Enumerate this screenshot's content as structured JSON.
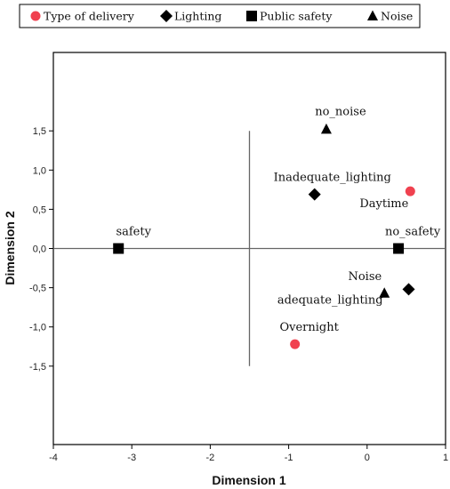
{
  "chart_data": {
    "type": "scatter",
    "title": "",
    "xlabel": "Dimension 1",
    "ylabel": "Dimension 2",
    "xlim": [
      -4,
      1
    ],
    "ylim": [
      -2.5,
      2.5
    ],
    "xticks": [
      "-4",
      "-3",
      "-2",
      "-1",
      "0",
      "1"
    ],
    "yticks": [
      "1,5",
      "1,0",
      "0,5",
      "0,0",
      "-0,5",
      "-1,0",
      "-1,5"
    ],
    "reference_lines": {
      "horizontal_y": 0.0,
      "vertical_x": -1.5,
      "vertical_range": [
        -1.5,
        1.5
      ]
    },
    "legend_position": "top",
    "series": [
      {
        "name": "Type of delivery",
        "marker": "circle",
        "color": "#f0414f",
        "points": [
          {
            "label": "Daytime",
            "x": 0.55,
            "y": 0.73
          },
          {
            "label": "Overnight",
            "x": -0.92,
            "y": -1.22
          }
        ]
      },
      {
        "name": "Lighting",
        "marker": "diamond",
        "color": "#000000",
        "points": [
          {
            "label": "Inadequate_lighting",
            "x": -0.67,
            "y": 0.69
          },
          {
            "label": "adequate_lighting",
            "x": 0.53,
            "y": -0.52
          }
        ]
      },
      {
        "name": "Public safety",
        "marker": "square",
        "color": "#000000",
        "points": [
          {
            "label": "safety",
            "x": -3.17,
            "y": 0.0
          },
          {
            "label": "no_safety",
            "x": 0.4,
            "y": 0.0
          }
        ]
      },
      {
        "name": "Noise",
        "marker": "triangle",
        "color": "#000000",
        "points": [
          {
            "label": "no_noise",
            "x": -0.52,
            "y": 1.52
          },
          {
            "label": "Noise",
            "x": 0.22,
            "y": -0.57
          }
        ]
      }
    ]
  }
}
